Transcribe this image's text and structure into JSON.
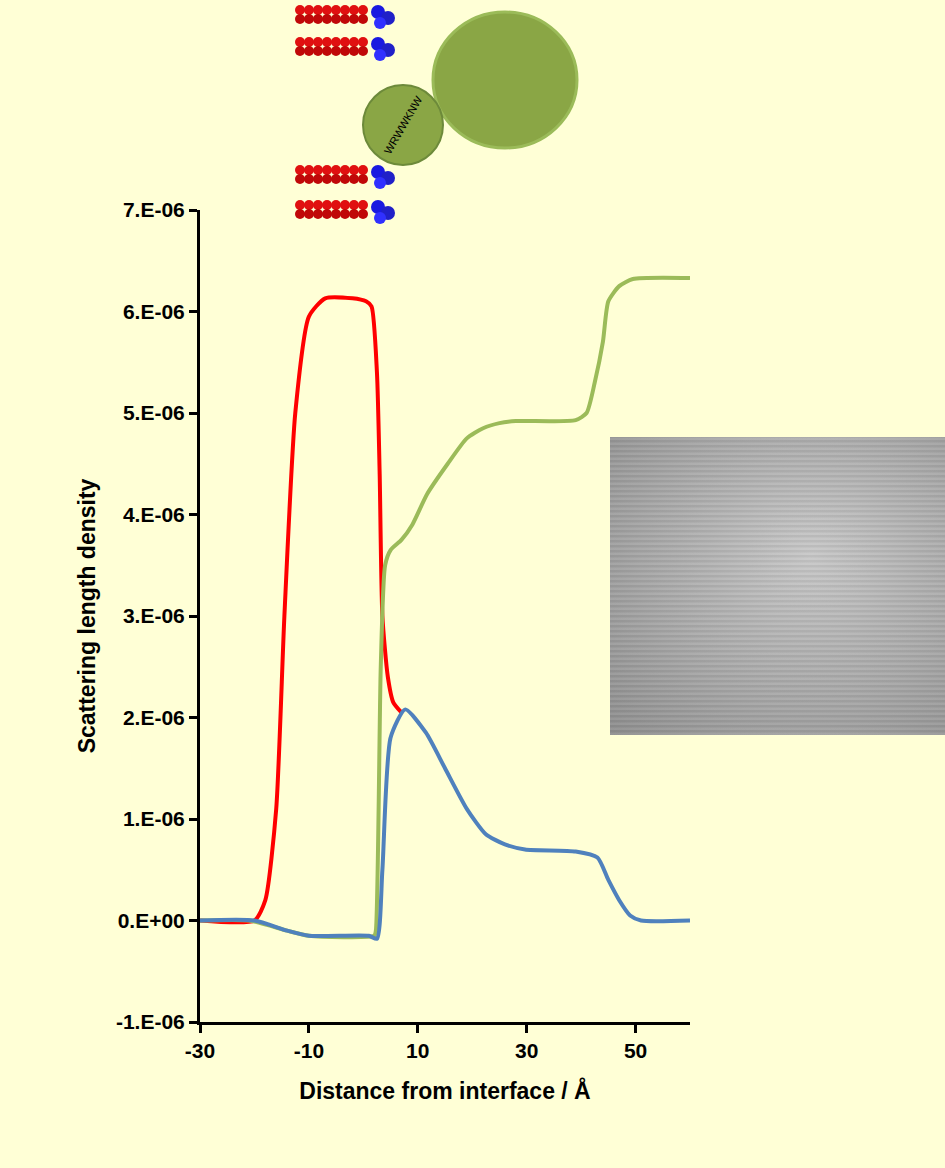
{
  "chart_data": {
    "type": "line",
    "x_label": "Distance from interface / Å",
    "y_label": "Scattering length density",
    "xlim": [
      -30,
      60
    ],
    "xticks": [
      -30,
      -10,
      10,
      30,
      50
    ],
    "ylim": [
      -1e-06,
      7e-06
    ],
    "yticks": [
      {
        "value": -1e-06,
        "label": "-1.E-06"
      },
      {
        "value": 0,
        "label": "0.E+00"
      },
      {
        "value": 1e-06,
        "label": "1.E-06"
      },
      {
        "value": 2e-06,
        "label": "2.E-06"
      },
      {
        "value": 3e-06,
        "label": "3.E-06"
      },
      {
        "value": 4e-06,
        "label": "4.E-06"
      },
      {
        "value": 5e-06,
        "label": "5.E-06"
      },
      {
        "value": 6e-06,
        "label": "6.E-06"
      },
      {
        "value": 7e-06,
        "label": "7.E-06"
      }
    ],
    "grid": false,
    "annotations": [
      {
        "text": "WRWWKNW"
      }
    ],
    "series": [
      {
        "color": "#ff0000",
        "x": [
          -30,
          -20,
          -18,
          -16,
          -14.5,
          -12.5,
          -10,
          -7,
          -2,
          0.5,
          1.5,
          2.5,
          3,
          3.5,
          4.5,
          5.5,
          7
        ],
        "values": [
          0,
          0,
          2e-07,
          1.1e-06,
          3e-06,
          5e-06,
          5.95e-06,
          6.13e-06,
          6.13e-06,
          6.1e-06,
          6.05e-06,
          5.4e-06,
          4.4e-06,
          3e-06,
          2.4e-06,
          2.15e-06,
          2.05e-06
        ]
      },
      {
        "color": "#9bbb59",
        "x": [
          -30,
          -21,
          -14,
          -10,
          2,
          2.3,
          3.2,
          4,
          5,
          7,
          9,
          11.7,
          15.5,
          19,
          22,
          25,
          28,
          39,
          41,
          42.5,
          44,
          45,
          47,
          49.5,
          60
        ],
        "values": [
          0,
          0,
          -1e-07,
          -1.5e-07,
          -1.5e-07,
          -1e-07,
          2.5e-06,
          3.5e-06,
          3.65e-06,
          3.75e-06,
          3.9e-06,
          4.2e-06,
          4.5e-06,
          4.75e-06,
          4.85e-06,
          4.9e-06,
          4.92e-06,
          4.93e-06,
          5e-06,
          5.3e-06,
          5.7e-06,
          6.1e-06,
          6.25e-06,
          6.32e-06,
          6.33e-06
        ]
      },
      {
        "color": "#4f81bd",
        "x": [
          -30,
          -20,
          -14,
          -10,
          1,
          2.5,
          3.5,
          5,
          7.7,
          11.5,
          15,
          19,
          22.5,
          26,
          29.7,
          39,
          43,
          45,
          47,
          49,
          51,
          60
        ],
        "values": [
          0,
          0,
          -1e-07,
          -1.5e-07,
          -1.5e-07,
          -1.8e-07,
          5e-07,
          1.8e-06,
          2.08e-06,
          1.85e-06,
          1.5e-06,
          1.1e-06,
          8.5e-07,
          7.5e-07,
          7e-07,
          6.8e-07,
          6.2e-07,
          4e-07,
          2e-07,
          5e-08,
          0,
          0
        ]
      }
    ]
  }
}
